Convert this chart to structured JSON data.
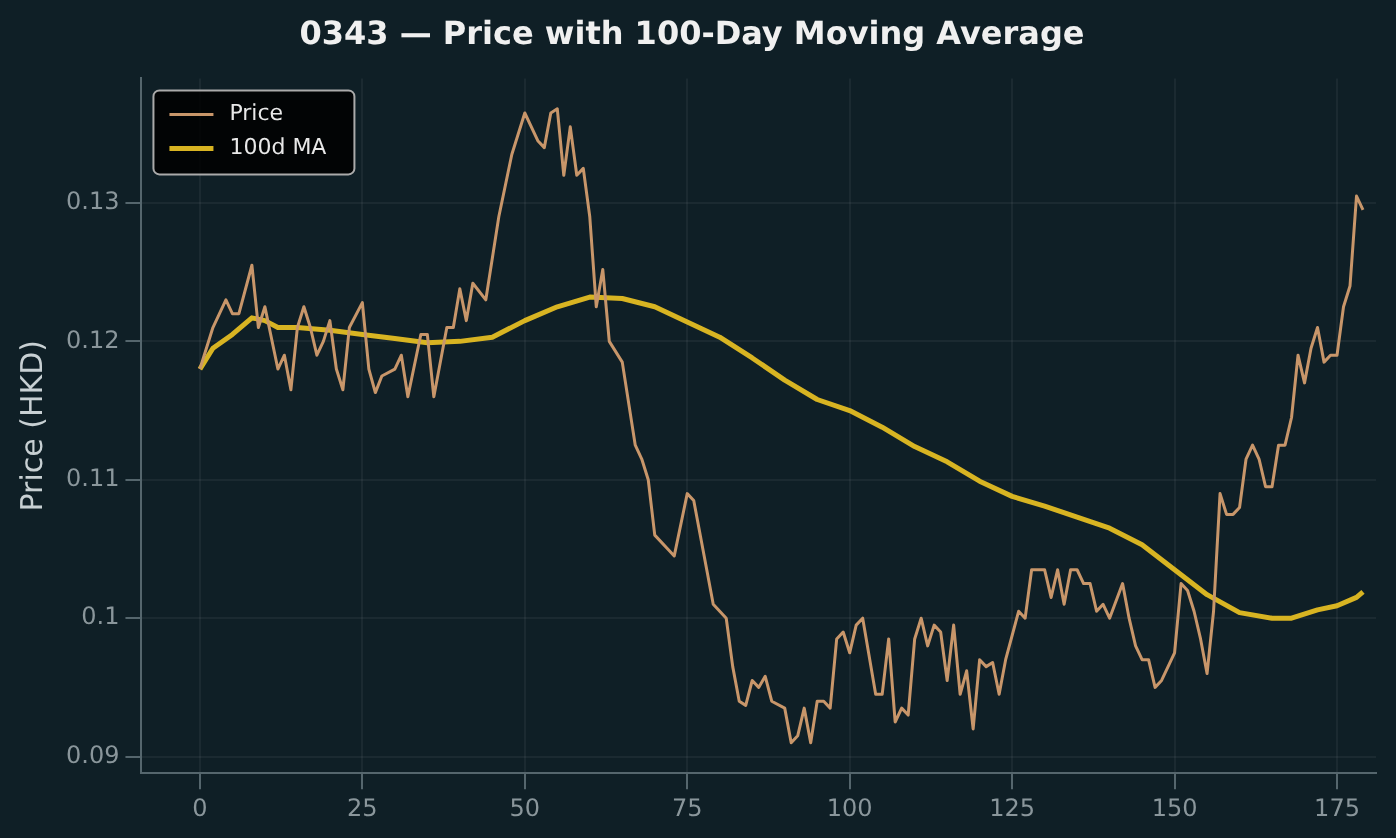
{
  "chart_data": {
    "type": "line",
    "title": "0343 — Price with 100-Day Moving Average",
    "ylabel": "Price (HKD)",
    "xlim": [
      -9,
      181
    ],
    "xticks": [
      0,
      25,
      50,
      75,
      100,
      125,
      150,
      175
    ],
    "ylim": [
      0.0888,
      0.139
    ],
    "yticks": [
      0.09,
      0.1,
      0.11,
      0.12,
      0.13
    ],
    "grid": true,
    "legend": "top left",
    "marker": "none",
    "line_style": "solid",
    "series": [
      {
        "name": "Price",
        "color": "#c8966a",
        "x": [
          0,
          2,
          4,
          5,
          6,
          8,
          9,
          10,
          12,
          13,
          14,
          15,
          16,
          17,
          18,
          19,
          20,
          21,
          22,
          23,
          25,
          26,
          27,
          28,
          30,
          31,
          32,
          34,
          35,
          36,
          38,
          39,
          40,
          41,
          42,
          44,
          46,
          48,
          50,
          52,
          53,
          54,
          55,
          56,
          57,
          58,
          59,
          60,
          61,
          62,
          63,
          65,
          67,
          68,
          69,
          70,
          72,
          73,
          75,
          76,
          79,
          81,
          82,
          83,
          84,
          85,
          86,
          87,
          88,
          90,
          91,
          92,
          93,
          94,
          95,
          96,
          97,
          98,
          99,
          100,
          101,
          102,
          104,
          105,
          106,
          107,
          108,
          109,
          110,
          111,
          112,
          113,
          114,
          115,
          116,
          117,
          118,
          119,
          120,
          121,
          122,
          123,
          124,
          126,
          127,
          128,
          129,
          130,
          131,
          132,
          133,
          134,
          135,
          136,
          137,
          138,
          139,
          140,
          142,
          143,
          144,
          145,
          146,
          147,
          148,
          150,
          151,
          152,
          153,
          154,
          155,
          156,
          157,
          158,
          159,
          160,
          161,
          162,
          163,
          164,
          165,
          166,
          167,
          168,
          169,
          170,
          171,
          172,
          173,
          174,
          175,
          176,
          177,
          178,
          179
        ],
        "values": [
          0.118,
          0.121,
          0.123,
          0.122,
          0.122,
          0.1255,
          0.121,
          0.1225,
          0.118,
          0.119,
          0.1165,
          0.121,
          0.1225,
          0.121,
          0.119,
          0.12,
          0.1215,
          0.118,
          0.1165,
          0.121,
          0.1228,
          0.118,
          0.1163,
          0.1175,
          0.118,
          0.119,
          0.116,
          0.1205,
          0.1205,
          0.116,
          0.121,
          0.121,
          0.1238,
          0.1215,
          0.1242,
          0.123,
          0.129,
          0.1335,
          0.1365,
          0.1345,
          0.134,
          0.1365,
          0.1368,
          0.132,
          0.1355,
          0.132,
          0.1325,
          0.129,
          0.1225,
          0.1252,
          0.12,
          0.1185,
          0.1125,
          0.1115,
          0.11,
          0.106,
          0.105,
          0.1045,
          0.109,
          0.1085,
          0.101,
          0.1,
          0.0965,
          0.094,
          0.0937,
          0.0955,
          0.095,
          0.0958,
          0.094,
          0.0935,
          0.091,
          0.0915,
          0.0935,
          0.091,
          0.094,
          0.094,
          0.0935,
          0.0985,
          0.099,
          0.0975,
          0.0995,
          0.1,
          0.0945,
          0.0945,
          0.0985,
          0.0925,
          0.0935,
          0.093,
          0.0985,
          0.1,
          0.098,
          0.0995,
          0.099,
          0.0955,
          0.0995,
          0.0945,
          0.0962,
          0.092,
          0.097,
          0.0965,
          0.0968,
          0.0945,
          0.097,
          0.1005,
          0.1,
          0.1035,
          0.1035,
          0.1035,
          0.1015,
          0.1035,
          0.101,
          0.1035,
          0.1035,
          0.1025,
          0.1025,
          0.1005,
          0.101,
          0.1,
          0.1025,
          0.1,
          0.098,
          0.097,
          0.097,
          0.095,
          0.0955,
          0.0975,
          0.1025,
          0.102,
          0.1005,
          0.0985,
          0.096,
          0.1005,
          0.109,
          0.1075,
          0.1075,
          0.108,
          0.1115,
          0.1125,
          0.1115,
          0.1095,
          0.1095,
          0.1125,
          0.1125,
          0.1145,
          0.119,
          0.117,
          0.1195,
          0.121,
          0.1185,
          0.119,
          0.119,
          0.1225,
          0.124,
          0.1305,
          0.1295
        ]
      },
      {
        "name": "100d MA",
        "color": "#d8b422",
        "x": [
          0,
          2,
          5,
          8,
          10,
          12,
          15,
          20,
          25,
          30,
          35,
          40,
          45,
          50,
          55,
          60,
          65,
          70,
          75,
          80,
          85,
          90,
          95,
          100,
          105,
          110,
          115,
          120,
          125,
          130,
          135,
          140,
          145,
          150,
          155,
          160,
          165,
          168,
          172,
          175,
          178,
          179
        ],
        "values": [
          0.118,
          0.1195,
          0.1205,
          0.1217,
          0.1215,
          0.121,
          0.121,
          0.1208,
          0.1205,
          0.1202,
          0.1199,
          0.12,
          0.1203,
          0.1215,
          0.1225,
          0.1232,
          0.1231,
          0.1225,
          0.1214,
          0.1203,
          0.1188,
          0.1172,
          0.1158,
          0.115,
          0.1138,
          0.1124,
          0.1113,
          0.1099,
          0.1088,
          0.1081,
          0.1073,
          0.1065,
          0.1053,
          0.1035,
          0.1017,
          0.1004,
          0.1,
          0.1,
          0.1006,
          0.1009,
          0.1015,
          0.1019
        ]
      }
    ]
  }
}
